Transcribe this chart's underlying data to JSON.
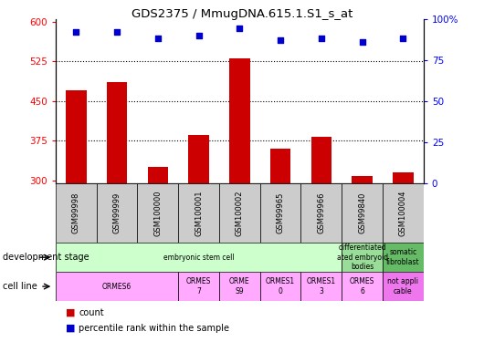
{
  "title": "GDS2375 / MmugDNA.615.1.S1_s_at",
  "samples": [
    "GSM99998",
    "GSM99999",
    "GSM100000",
    "GSM100001",
    "GSM100002",
    "GSM99965",
    "GSM99966",
    "GSM99840",
    "GSM100004"
  ],
  "counts": [
    470,
    485,
    325,
    385,
    530,
    360,
    382,
    308,
    315
  ],
  "percentiles": [
    92,
    92,
    88,
    90,
    94,
    87,
    88,
    86,
    88
  ],
  "ylim_left": [
    295,
    605
  ],
  "ylim_right": [
    0,
    100
  ],
  "yticks_left": [
    300,
    375,
    450,
    525,
    600
  ],
  "yticks_right": [
    0,
    25,
    50,
    75,
    100
  ],
  "ytick_labels_right": [
    "0",
    "25",
    "50",
    "75",
    "100%"
  ],
  "bar_color": "#cc0000",
  "dot_color": "#0000cc",
  "gridline_values": [
    375,
    450,
    525
  ],
  "development_stage_label": "development stage",
  "cell_line_label": "cell line",
  "sample_box_color": "#cccccc",
  "dev_regions": [
    {
      "start": 0,
      "end": 7,
      "text": "embryonic stem cell",
      "color": "#ccffcc"
    },
    {
      "start": 7,
      "end": 8,
      "text": "differentiated\nated embryoid\nbodies",
      "color": "#99dd99"
    },
    {
      "start": 8,
      "end": 9,
      "text": "somatic\nfibroblast",
      "color": "#66bb66"
    }
  ],
  "cell_regions": [
    {
      "start": 0,
      "end": 3,
      "text": "ORMES6",
      "color": "#ffaaff"
    },
    {
      "start": 3,
      "end": 4,
      "text": "ORMES\n7",
      "color": "#ffaaff"
    },
    {
      "start": 4,
      "end": 5,
      "text": "ORME\nS9",
      "color": "#ffaaff"
    },
    {
      "start": 5,
      "end": 6,
      "text": "ORMES1\n0",
      "color": "#ffaaff"
    },
    {
      "start": 6,
      "end": 7,
      "text": "ORMES1\n3",
      "color": "#ffaaff"
    },
    {
      "start": 7,
      "end": 8,
      "text": "ORMES\n6",
      "color": "#ffaaff"
    },
    {
      "start": 8,
      "end": 9,
      "text": "not appli\ncable",
      "color": "#ee77ee"
    }
  ],
  "bg_color": "#ffffff",
  "legend_count_color": "#cc0000",
  "legend_pct_color": "#0000cc"
}
